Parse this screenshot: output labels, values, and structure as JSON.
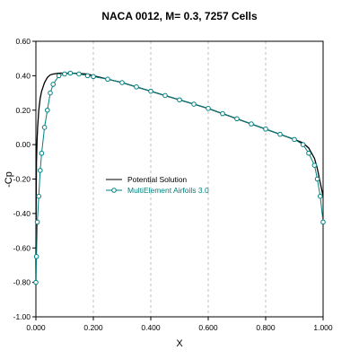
{
  "chart_data": {
    "type": "line",
    "title": "NACA 0012, M= 0.3, 7257 Cells",
    "xlabel": "X",
    "ylabel": "-Cp",
    "xlim": [
      0.0,
      1.0
    ],
    "ylim": [
      -1.0,
      0.6
    ],
    "x_ticks": [
      "0.000",
      "0.200",
      "0.400",
      "0.600",
      "0.800",
      "1.000"
    ],
    "y_ticks": [
      "0.60",
      "0.40",
      "0.20",
      "0.00",
      "-0.20",
      "-0.40",
      "-0.60",
      "-0.80",
      "-1.00"
    ],
    "grid": "vertical dashed",
    "legend_position": "center-left",
    "series": [
      {
        "name": "Potential Solution",
        "color": "#000000",
        "marker": "none",
        "x": [
          0.0,
          0.0005,
          0.001,
          0.002,
          0.004,
          0.006,
          0.01,
          0.015,
          0.02,
          0.03,
          0.04,
          0.05,
          0.06,
          0.08,
          0.1,
          0.12,
          0.15,
          0.18,
          0.2,
          0.25,
          0.3,
          0.35,
          0.4,
          0.45,
          0.5,
          0.55,
          0.6,
          0.65,
          0.7,
          0.75,
          0.8,
          0.85,
          0.9,
          0.93,
          0.95,
          0.97,
          0.98,
          0.99,
          0.995,
          1.0
        ],
        "y": [
          -0.8,
          -0.5,
          -0.3,
          -0.1,
          0.02,
          0.1,
          0.2,
          0.27,
          0.31,
          0.36,
          0.39,
          0.405,
          0.41,
          0.415,
          0.415,
          0.415,
          0.413,
          0.41,
          0.4,
          0.38,
          0.36,
          0.335,
          0.31,
          0.285,
          0.26,
          0.235,
          0.21,
          0.18,
          0.15,
          0.12,
          0.09,
          0.06,
          0.03,
          0.01,
          -0.02,
          -0.08,
          -0.14,
          -0.22,
          -0.26,
          -0.3
        ]
      },
      {
        "name": "MultiElement Airfoils 3.0",
        "color": "#008080",
        "marker": "circle",
        "x": [
          0.0,
          0.002,
          0.005,
          0.01,
          0.015,
          0.02,
          0.03,
          0.04,
          0.05,
          0.06,
          0.08,
          0.1,
          0.12,
          0.15,
          0.18,
          0.2,
          0.25,
          0.3,
          0.35,
          0.4,
          0.45,
          0.5,
          0.55,
          0.6,
          0.65,
          0.7,
          0.75,
          0.8,
          0.85,
          0.9,
          0.93,
          0.95,
          0.97,
          0.98,
          0.99,
          1.0
        ],
        "y": [
          -0.8,
          -0.65,
          -0.45,
          -0.3,
          -0.15,
          -0.05,
          0.1,
          0.2,
          0.3,
          0.35,
          0.4,
          0.41,
          0.415,
          0.41,
          0.4,
          0.395,
          0.38,
          0.36,
          0.335,
          0.31,
          0.285,
          0.26,
          0.235,
          0.21,
          0.18,
          0.15,
          0.12,
          0.09,
          0.06,
          0.03,
          0.0,
          -0.05,
          -0.12,
          -0.2,
          -0.3,
          -0.45
        ]
      }
    ]
  }
}
